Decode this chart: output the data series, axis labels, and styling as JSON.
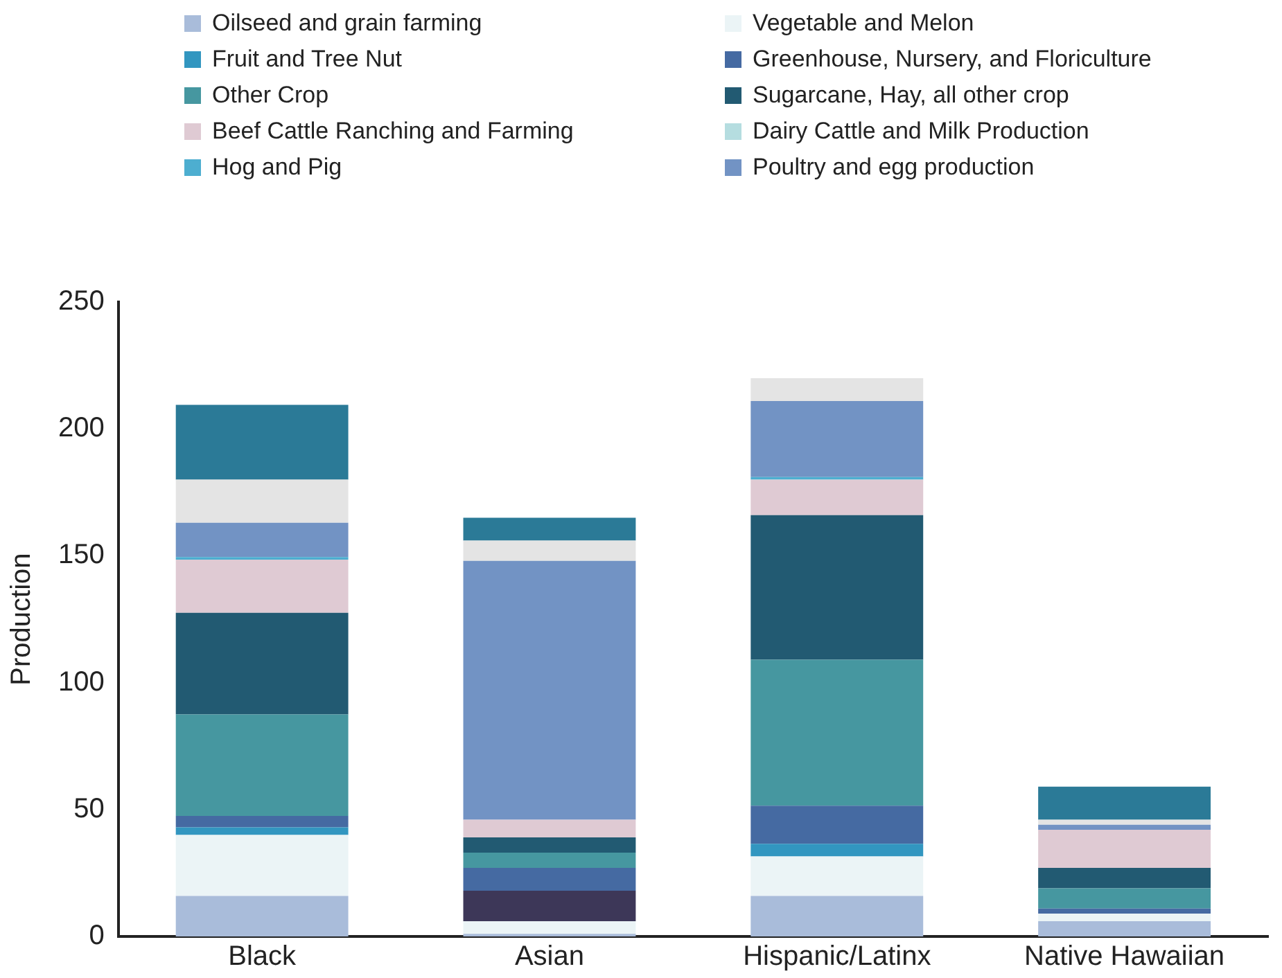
{
  "chart_data": {
    "type": "bar",
    "stacked": true,
    "ylabel": "Production",
    "categories": [
      "Black",
      "Asian",
      "Hispanic/Latinx",
      "Native Hawaiian"
    ],
    "ylim": [
      0,
      250
    ],
    "yticks": [
      0,
      50,
      100,
      150,
      200,
      250
    ],
    "grid": false,
    "legend": "top",
    "series": [
      {
        "name": "Oilseed and grain farming",
        "color": "#a9bcda",
        "values": [
          16,
          1,
          16,
          6
        ]
      },
      {
        "name": "Vegetable and Melon",
        "color": "#ebf4f6",
        "values": [
          24,
          5,
          15.5,
          3
        ]
      },
      {
        "name": "Fruit and Tree Nut",
        "color": "#3296c0",
        "values": [
          3,
          0,
          5,
          0
        ]
      },
      {
        "color": "#3d3758",
        "values": [
          0,
          12,
          0,
          0
        ]
      },
      {
        "name": "Greenhouse, Nursery, and Floriculture",
        "color": "#456aa2",
        "values": [
          4.5,
          9,
          15,
          2
        ]
      },
      {
        "name": "Other Crop",
        "color": "#4697a0",
        "values": [
          40,
          6,
          57.5,
          8
        ]
      },
      {
        "name": "Sugarcane, Hay, all other crop",
        "color": "#225a72",
        "values": [
          40,
          6,
          57,
          8
        ]
      },
      {
        "name": "Beef Cattle Ranching and Farming",
        "color": "#dfcad3",
        "values": [
          21,
          7,
          14,
          15
        ]
      },
      {
        "name": "Dairy Cattle and Milk Production",
        "color": "#b5dde0",
        "values": [
          0,
          0,
          null,
          0
        ]
      },
      {
        "name": "Hog and Pig",
        "color": "#4daed0",
        "values": [
          1,
          0,
          1,
          0
        ]
      },
      {
        "name": "Poultry and egg production",
        "color": "#7293c4",
        "values": [
          13.5,
          102,
          30,
          2
        ]
      },
      {
        "color": "#e4e4e4",
        "values": [
          17,
          8,
          9,
          2
        ]
      },
      {
        "color": "#2b7a97",
        "values": [
          29.5,
          9,
          0,
          13
        ]
      }
    ]
  }
}
